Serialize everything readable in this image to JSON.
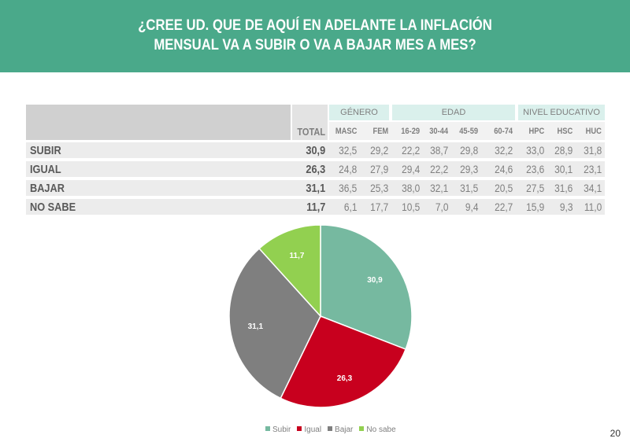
{
  "header": {
    "title_line1": "¿CREE UD. QUE DE AQUÍ EN ADELANTE LA INFLACIÓN",
    "title_line2": "MENSUAL VA A SUBIR O VA A BAJAR MES A MES?"
  },
  "table": {
    "groups": [
      {
        "label": "GÉNERO",
        "span": 2
      },
      {
        "label": "EDAD",
        "span": 4
      },
      {
        "label": "NIVEL EDUCATIVO",
        "span": 3
      }
    ],
    "columns": [
      "TOTAL",
      "MASC",
      "FEM",
      "16-29",
      "30-44",
      "45-59",
      "60-74",
      "HPC",
      "HSC",
      "HUC"
    ],
    "rows": [
      {
        "label": "SUBIR",
        "values": [
          "30,9",
          "32,5",
          "29,2",
          "22,2",
          "38,7",
          "29,8",
          "32,2",
          "33,0",
          "28,9",
          "31,8"
        ]
      },
      {
        "label": "IGUAL",
        "values": [
          "26,3",
          "24,8",
          "27,9",
          "29,4",
          "22,2",
          "29,3",
          "24,6",
          "23,6",
          "30,1",
          "23,1"
        ]
      },
      {
        "label": "BAJAR",
        "values": [
          "31,1",
          "36,5",
          "25,3",
          "38,0",
          "32,1",
          "31,5",
          "20,5",
          "27,5",
          "31,6",
          "34,1"
        ]
      },
      {
        "label": "NO SABE",
        "values": [
          "11,7",
          "6,1",
          "17,7",
          "10,5",
          "7,0",
          "9,4",
          "22,7",
          "15,9",
          "9,3",
          "11,0"
        ]
      }
    ]
  },
  "chart_data": {
    "type": "pie",
    "labels": [
      "Subir",
      "Igual",
      "Bajar",
      "No sabe"
    ],
    "values": [
      30.9,
      26.3,
      31.1,
      11.7
    ],
    "value_labels": [
      "30,9",
      "26,3",
      "31,1",
      "11,7"
    ],
    "colors": [
      "#76b9a0",
      "#c8001e",
      "#7f7f7f",
      "#92d050"
    ],
    "legend_position": "bottom"
  },
  "page_number": "20"
}
